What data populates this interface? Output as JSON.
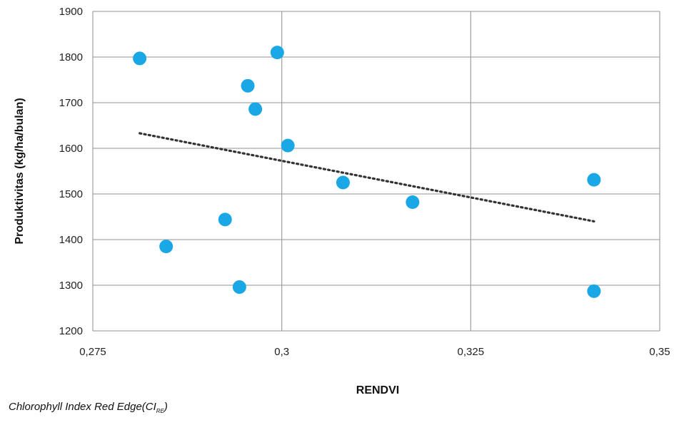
{
  "chart_data": {
    "type": "scatter",
    "xlabel": "RENDVI",
    "ylabel": "Produktivitas (kg/ha/bulan)",
    "xlim": [
      0.275,
      0.35
    ],
    "ylim": [
      1200,
      1900
    ],
    "x_ticks": [
      "0,275",
      "0,3",
      "0,325",
      "0,35"
    ],
    "y_ticks": [
      "1200",
      "1300",
      "1400",
      "1500",
      "1600",
      "1700",
      "1800",
      "1900"
    ],
    "x_tick_values": [
      0.275,
      0.3,
      0.325,
      0.35
    ],
    "y_tick_values": [
      1200,
      1300,
      1400,
      1500,
      1600,
      1700,
      1800,
      1900
    ],
    "grid": true,
    "legend": "none",
    "series": [
      {
        "points": [
          {
            "x": 0.2812,
            "y": 1797
          },
          {
            "x": 0.2847,
            "y": 1385
          },
          {
            "x": 0.2925,
            "y": 1444
          },
          {
            "x": 0.2944,
            "y": 1296
          },
          {
            "x": 0.2955,
            "y": 1737
          },
          {
            "x": 0.2965,
            "y": 1686
          },
          {
            "x": 0.2994,
            "y": 1810
          },
          {
            "x": 0.3008,
            "y": 1606
          },
          {
            "x": 0.3081,
            "y": 1525
          },
          {
            "x": 0.3173,
            "y": 1482
          },
          {
            "x": 0.3413,
            "y": 1531
          },
          {
            "x": 0.3413,
            "y": 1287
          }
        ],
        "color": "#1aa7e6"
      }
    ],
    "trendline": {
      "type": "linear",
      "x": [
        0.2812,
        0.3413
      ],
      "y": [
        1633,
        1440
      ],
      "color": "#333333",
      "style": "dotted"
    }
  },
  "caption": {
    "main": "Chlorophyll Index Red Edge(CI",
    "sub": "RE",
    "close": ")"
  }
}
